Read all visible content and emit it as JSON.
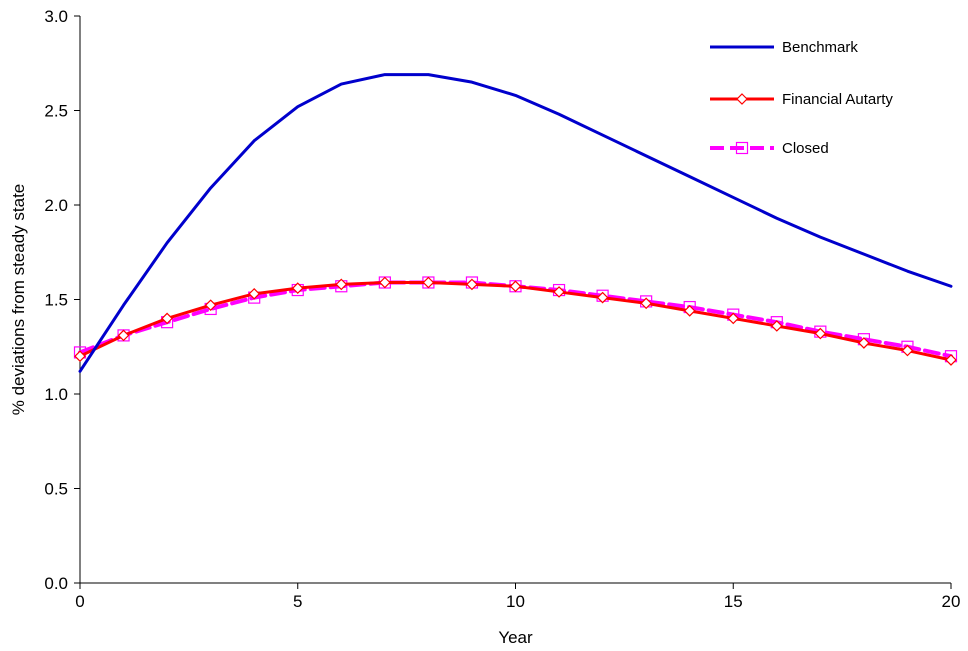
{
  "chart_data": {
    "type": "line",
    "title": "",
    "xlabel": "Year",
    "ylabel": "% deviations from steady state",
    "xlim": [
      0,
      20
    ],
    "ylim": [
      0,
      3
    ],
    "x_ticks": [
      0,
      5,
      10,
      15,
      20
    ],
    "y_ticks": [
      0.0,
      0.5,
      1.0,
      1.5,
      2.0,
      2.5,
      3.0
    ],
    "y_tick_labels": [
      "0.0",
      "0.5",
      "1.0",
      "1.5",
      "2.0",
      "2.5",
      "3.0"
    ],
    "legend_position": "top-right",
    "grid": false,
    "x": [
      0,
      1,
      2,
      3,
      4,
      5,
      6,
      7,
      8,
      9,
      10,
      11,
      12,
      13,
      14,
      15,
      16,
      17,
      18,
      19,
      20
    ],
    "series": [
      {
        "name": "Benchmark",
        "color": "#0000cc",
        "marker": "none",
        "dash": "solid",
        "values": [
          1.12,
          1.47,
          1.8,
          2.09,
          2.34,
          2.52,
          2.64,
          2.69,
          2.69,
          2.65,
          2.58,
          2.48,
          2.37,
          2.26,
          2.15,
          2.04,
          1.93,
          1.83,
          1.74,
          1.65,
          1.57
        ]
      },
      {
        "name": "Financial Autarty",
        "color": "#ff0000",
        "marker": "diamond",
        "dash": "solid",
        "values": [
          1.2,
          1.31,
          1.4,
          1.47,
          1.53,
          1.56,
          1.58,
          1.59,
          1.59,
          1.58,
          1.57,
          1.54,
          1.51,
          1.48,
          1.44,
          1.4,
          1.36,
          1.32,
          1.27,
          1.23,
          1.18
        ]
      },
      {
        "name": "Closed",
        "color": "#ff00ff",
        "marker": "square",
        "dash": "dashed",
        "values": [
          1.22,
          1.31,
          1.38,
          1.45,
          1.51,
          1.55,
          1.57,
          1.59,
          1.59,
          1.59,
          1.57,
          1.55,
          1.52,
          1.49,
          1.46,
          1.42,
          1.38,
          1.33,
          1.29,
          1.25,
          1.2
        ]
      }
    ]
  }
}
